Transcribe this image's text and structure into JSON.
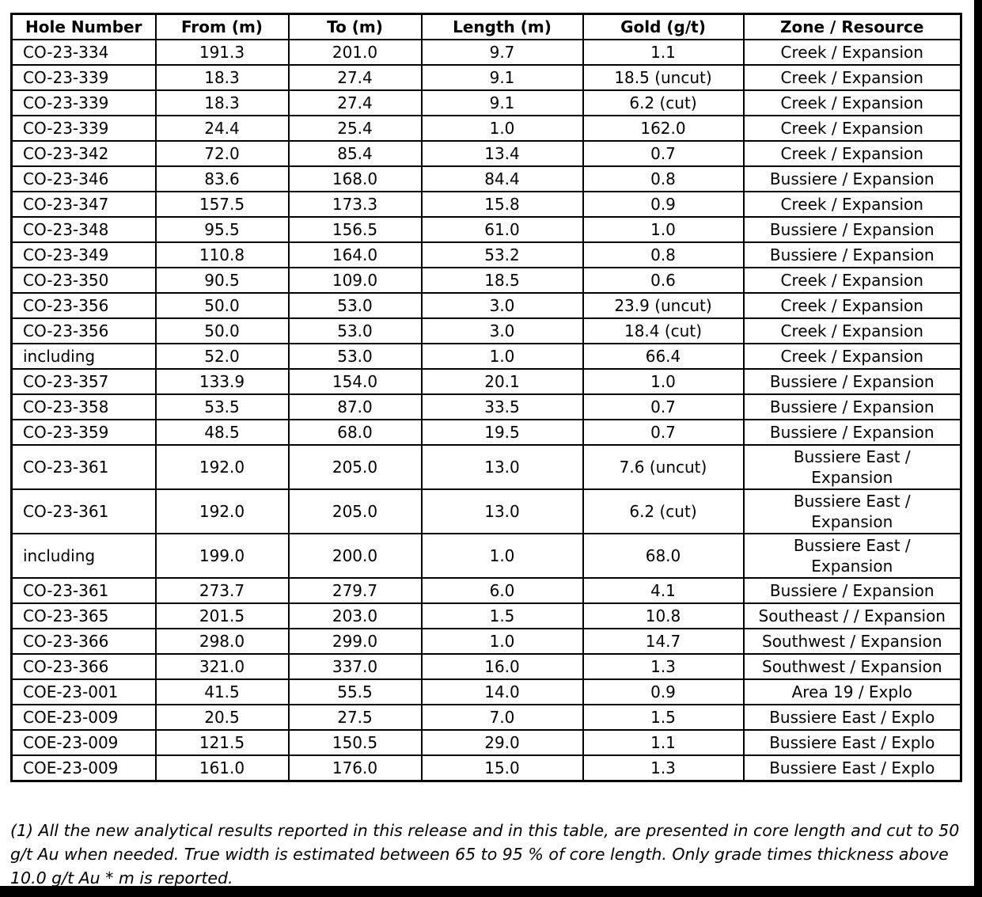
{
  "colors": {
    "background": "#ffffff",
    "text": "#000000",
    "border": "#000000",
    "frame_edge": "#000000"
  },
  "table": {
    "columns": [
      "Hole Number",
      "From (m)",
      "To (m)",
      "Length (m)",
      "Gold (g/t)",
      "Zone / Resource"
    ],
    "rows": [
      {
        "hole": "CO-23-334",
        "from": "191.3",
        "to": "201.0",
        "length": "9.7",
        "gold": "1.1",
        "zone": "Creek / Expansion"
      },
      {
        "hole": "CO-23-339",
        "from": "18.3",
        "to": "27.4",
        "length": "9.1",
        "gold": "18.5 (uncut)",
        "zone": "Creek / Expansion"
      },
      {
        "hole": "CO-23-339",
        "from": "18.3",
        "to": "27.4",
        "length": "9.1",
        "gold": "6.2 (cut)",
        "zone": "Creek / Expansion"
      },
      {
        "hole": "CO-23-339",
        "from": "24.4",
        "to": "25.4",
        "length": "1.0",
        "gold": "162.0",
        "zone": "Creek / Expansion"
      },
      {
        "hole": "CO-23-342",
        "from": "72.0",
        "to": "85.4",
        "length": "13.4",
        "gold": "0.7",
        "zone": "Creek / Expansion"
      },
      {
        "hole": "CO-23-346",
        "from": "83.6",
        "to": "168.0",
        "length": "84.4",
        "gold": "0.8",
        "zone": "Bussiere / Expansion"
      },
      {
        "hole": "CO-23-347",
        "from": "157.5",
        "to": "173.3",
        "length": "15.8",
        "gold": "0.9",
        "zone": "Creek / Expansion"
      },
      {
        "hole": "CO-23-348",
        "from": "95.5",
        "to": "156.5",
        "length": "61.0",
        "gold": "1.0",
        "zone": "Bussiere / Expansion"
      },
      {
        "hole": "CO-23-349",
        "from": "110.8",
        "to": "164.0",
        "length": "53.2",
        "gold": "0.8",
        "zone": "Bussiere / Expansion"
      },
      {
        "hole": "CO-23-350",
        "from": "90.5",
        "to": "109.0",
        "length": "18.5",
        "gold": "0.6",
        "zone": "Creek / Expansion"
      },
      {
        "hole": "CO-23-356",
        "from": "50.0",
        "to": "53.0",
        "length": "3.0",
        "gold": "23.9 (uncut)",
        "zone": "Creek / Expansion"
      },
      {
        "hole": "CO-23-356",
        "from": "50.0",
        "to": "53.0",
        "length": "3.0",
        "gold": "18.4 (cut)",
        "zone": "Creek / Expansion"
      },
      {
        "hole": "including",
        "from": "52.0",
        "to": "53.0",
        "length": "1.0",
        "gold": "66.4",
        "zone": "Creek / Expansion"
      },
      {
        "hole": "CO-23-357",
        "from": "133.9",
        "to": "154.0",
        "length": "20.1",
        "gold": "1.0",
        "zone": "Bussiere / Expansion"
      },
      {
        "hole": "CO-23-358",
        "from": "53.5",
        "to": "87.0",
        "length": "33.5",
        "gold": "0.7",
        "zone": "Bussiere / Expansion"
      },
      {
        "hole": "CO-23-359",
        "from": "48.5",
        "to": "68.0",
        "length": "19.5",
        "gold": "0.7",
        "zone": "Bussiere / Expansion"
      },
      {
        "hole": "CO-23-361",
        "from": "192.0",
        "to": "205.0",
        "length": "13.0",
        "gold": "7.6 (uncut)",
        "zone": "Bussiere East /\nExpansion"
      },
      {
        "hole": "CO-23-361",
        "from": "192.0",
        "to": "205.0",
        "length": "13.0",
        "gold": "6.2 (cut)",
        "zone": "Bussiere East /\nExpansion"
      },
      {
        "hole": "including",
        "from": "199.0",
        "to": "200.0",
        "length": "1.0",
        "gold": "68.0",
        "zone": "Bussiere East /\nExpansion"
      },
      {
        "hole": "CO-23-361",
        "from": "273.7",
        "to": "279.7",
        "length": "6.0",
        "gold": "4.1",
        "zone": "Bussiere / Expansion"
      },
      {
        "hole": "CO-23-365",
        "from": "201.5",
        "to": "203.0",
        "length": "1.5",
        "gold": "10.8",
        "zone": "Southeast / / Expansion"
      },
      {
        "hole": "CO-23-366",
        "from": "298.0",
        "to": "299.0",
        "length": "1.0",
        "gold": "14.7",
        "zone": "Southwest / Expansion"
      },
      {
        "hole": "CO-23-366",
        "from": "321.0",
        "to": "337.0",
        "length": "16.0",
        "gold": "1.3",
        "zone": "Southwest / Expansion"
      },
      {
        "hole": "COE-23-001",
        "from": "41.5",
        "to": "55.5",
        "length": "14.0",
        "gold": "0.9",
        "zone": "Area 19 / Explo"
      },
      {
        "hole": "COE-23-009",
        "from": "20.5",
        "to": "27.5",
        "length": "7.0",
        "gold": "1.5",
        "zone": "Bussiere East / Explo"
      },
      {
        "hole": "COE-23-009",
        "from": "121.5",
        "to": "150.5",
        "length": "29.0",
        "gold": "1.1",
        "zone": "Bussiere East / Explo"
      },
      {
        "hole": "COE-23-009",
        "from": "161.0",
        "to": "176.0",
        "length": "15.0",
        "gold": "1.3",
        "zone": "Bussiere East / Explo"
      }
    ]
  },
  "footnote": "(1) All the new analytical results reported in this release and in this table, are presented in core length and cut to 50 g/t Au when needed. True width is estimated between 65 to 95 % of core length. Only grade times thickness above 10.0 g/t Au * m is reported."
}
